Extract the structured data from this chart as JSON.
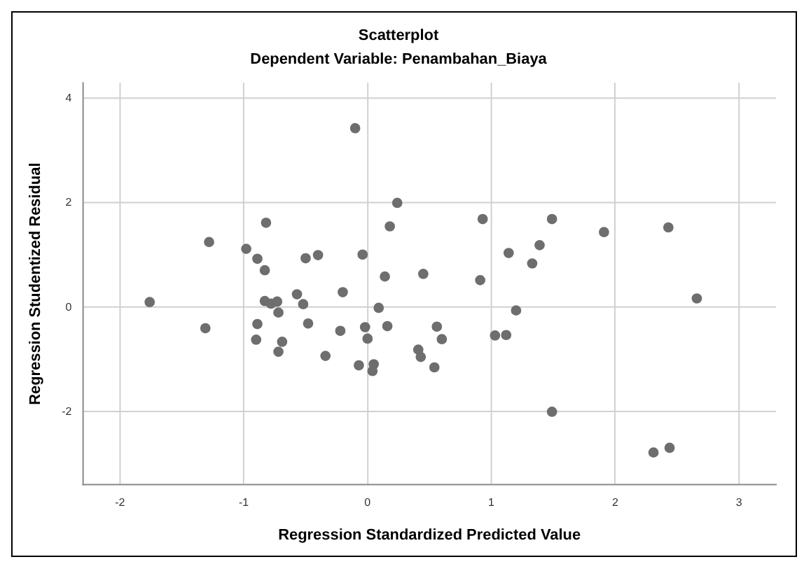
{
  "chart_data": {
    "type": "scatter",
    "title": "Scatterplot",
    "subtitle": "Dependent Variable: Penambahan_Biaya",
    "xlabel": "Regression Standardized Predicted Value",
    "ylabel": "Regression Studentized Residual",
    "xlim": [
      -2.3,
      3.3
    ],
    "ylim": [
      -3.4,
      4.3
    ],
    "xticks": [
      -2,
      -1,
      0,
      1,
      2,
      3
    ],
    "yticks": [
      -2,
      0,
      2,
      4
    ],
    "grid": true,
    "marker": "circle",
    "series": [
      {
        "color": "#6e6e6e",
        "x": [
          -1.76,
          -1.31,
          -1.28,
          -0.98,
          -0.82,
          -0.89,
          -0.83,
          -0.83,
          -0.78,
          -0.73,
          -0.72,
          -0.89,
          -0.9,
          -0.72,
          -0.69,
          -0.57,
          -0.5,
          -0.52,
          -0.48,
          -0.4,
          -0.34,
          -0.22,
          -0.2,
          -0.1,
          -0.04,
          -0.02,
          0,
          -0.07,
          0.04,
          0.05,
          0.09,
          0.14,
          0.16,
          0.18,
          0.24,
          0.45,
          0.41,
          0.43,
          0.56,
          0.6,
          0.54,
          0.93,
          0.91,
          1.03,
          1.12,
          1.14,
          1.2,
          1.33,
          1.39,
          1.49,
          1.49,
          1.91,
          2.43,
          2.66,
          2.31,
          2.44
        ],
        "values": [
          0.1,
          -0.4,
          1.25,
          1.12,
          1.62,
          0.93,
          0.71,
          0.12,
          0.07,
          0.11,
          -0.1,
          -0.32,
          -0.62,
          -0.85,
          -0.66,
          0.25,
          0.94,
          0.06,
          -0.31,
          1,
          -0.93,
          -0.45,
          0.29,
          3.43,
          1.01,
          -0.38,
          -0.6,
          -1.11,
          -1.22,
          -1.09,
          -0.01,
          0.59,
          -0.36,
          1.55,
          2,
          0.64,
          -0.81,
          -0.95,
          -0.37,
          -0.61,
          -1.15,
          1.69,
          0.52,
          -0.54,
          -0.53,
          1.04,
          -0.06,
          0.84,
          1.19,
          1.69,
          -2,
          1.44,
          1.53,
          0.17,
          -2.78,
          -2.69
        ]
      }
    ]
  }
}
